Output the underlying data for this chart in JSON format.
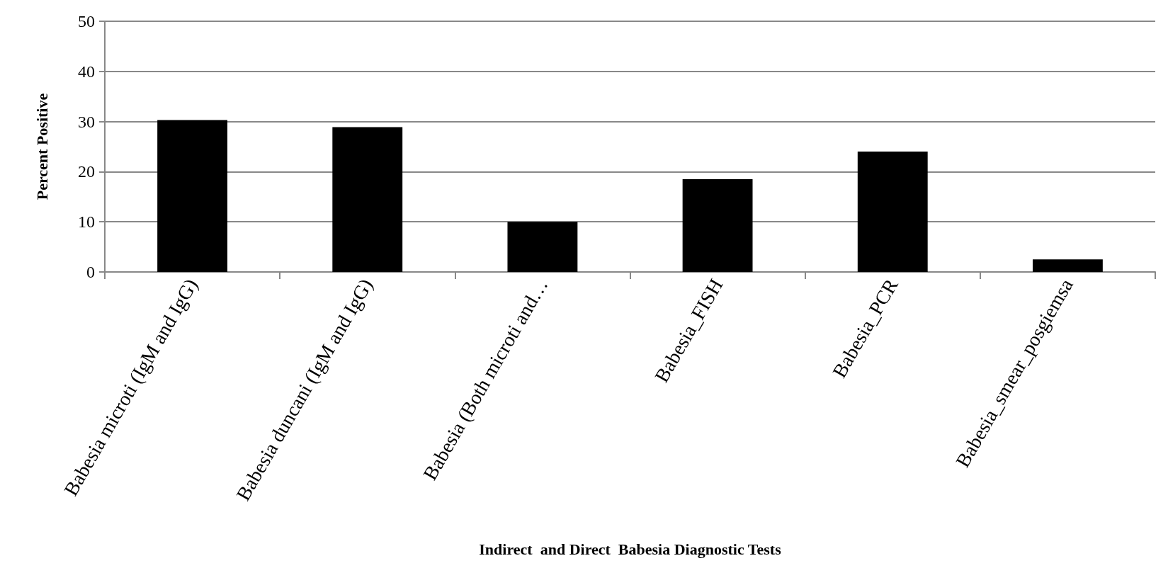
{
  "chart_data": {
    "type": "bar",
    "xlabel": "Indirect  and Direct  Babesia Diagnostic Tests",
    "ylabel": "Percent Positive",
    "categories": [
      "Babesia microti (IgM and IgG)",
      "Babesia duncani (IgM and IgG)",
      "Babesia (Both microti and…",
      "Babesia_FISH",
      "Babesia_PCR",
      "Babesia_smear_posgiemsa"
    ],
    "values": [
      30.3,
      28.9,
      10,
      18.5,
      24,
      2.5
    ],
    "color": "#000000",
    "ylim": [
      0,
      50
    ],
    "yticks": [
      0,
      10,
      20,
      30,
      40,
      50
    ],
    "grid": "y"
  }
}
